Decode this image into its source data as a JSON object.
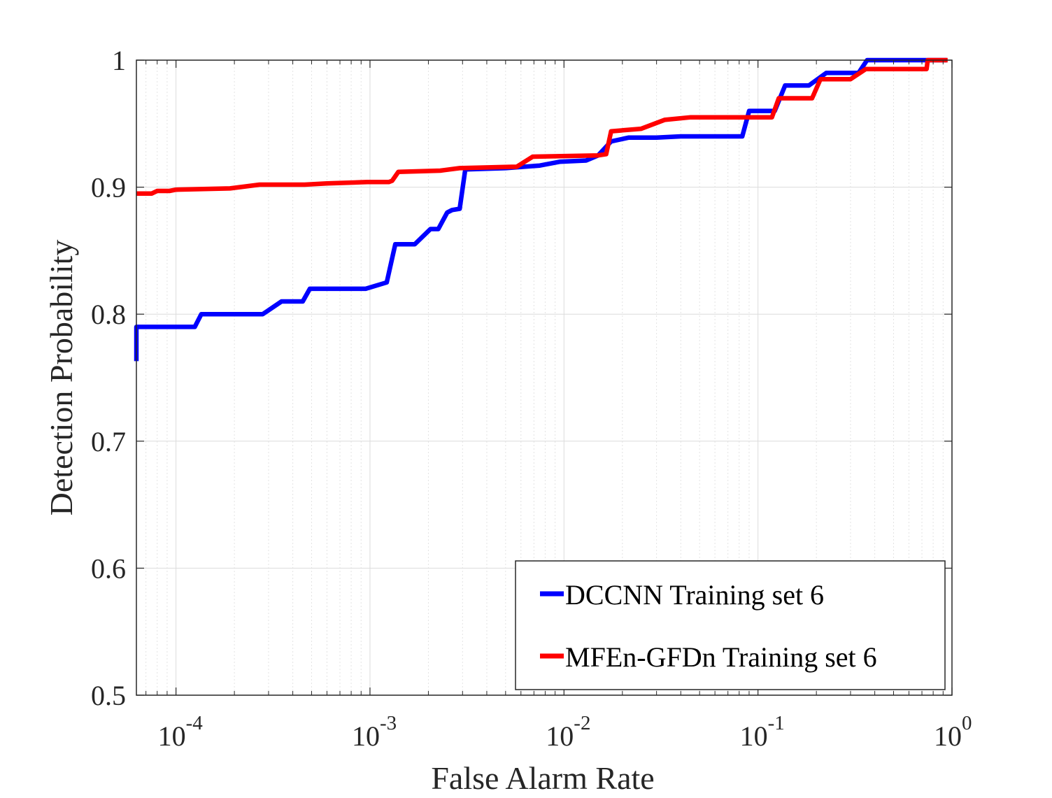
{
  "chart_data": {
    "type": "line",
    "xscale": "log",
    "xlabel": "False Alarm Rate",
    "ylabel": "Detection Probability",
    "xlim": [
      6.25e-05,
      1
    ],
    "ylim": [
      0.5,
      1
    ],
    "xtick_labels": [
      {
        "base": "10",
        "exp": "-4"
      },
      {
        "base": "10",
        "exp": "-3"
      },
      {
        "base": "10",
        "exp": "-2"
      },
      {
        "base": "10",
        "exp": "-1"
      },
      {
        "base": "10",
        "exp": "0"
      }
    ],
    "xtick_values": [
      0.0001,
      0.001,
      0.01,
      0.1,
      1
    ],
    "ytick_values": [
      0.5,
      0.6,
      0.7,
      0.8,
      0.9,
      1
    ],
    "ytick_labels": [
      "0.5",
      "0.6",
      "0.7",
      "0.8",
      "0.9",
      "1"
    ],
    "grid": true,
    "legend_position": "bottom-right",
    "series": [
      {
        "name": "DCCNN Training set 6",
        "color": "#0000ff",
        "points": [
          [
            6.25e-05,
            0.763
          ],
          [
            6.25e-05,
            0.79
          ],
          [
            0.000125,
            0.79
          ],
          [
            0.000135,
            0.8
          ],
          [
            0.00028,
            0.8
          ],
          [
            0.00035,
            0.81
          ],
          [
            0.00045,
            0.81
          ],
          [
            0.00049,
            0.82
          ],
          [
            0.00095,
            0.82
          ],
          [
            0.00122,
            0.825
          ],
          [
            0.00135,
            0.855
          ],
          [
            0.0017,
            0.855
          ],
          [
            0.00205,
            0.867
          ],
          [
            0.00225,
            0.867
          ],
          [
            0.0025,
            0.88
          ],
          [
            0.00265,
            0.882
          ],
          [
            0.0029,
            0.883
          ],
          [
            0.0031,
            0.914
          ],
          [
            0.005,
            0.915
          ],
          [
            0.0075,
            0.917
          ],
          [
            0.0095,
            0.92
          ],
          [
            0.013,
            0.921
          ],
          [
            0.015,
            0.925
          ],
          [
            0.0175,
            0.936
          ],
          [
            0.0215,
            0.939
          ],
          [
            0.03,
            0.939
          ],
          [
            0.04,
            0.94
          ],
          [
            0.083,
            0.94
          ],
          [
            0.09,
            0.96
          ],
          [
            0.122,
            0.96
          ],
          [
            0.138,
            0.98
          ],
          [
            0.183,
            0.98
          ],
          [
            0.225,
            0.99
          ],
          [
            0.33,
            0.99
          ],
          [
            0.365,
            1.0
          ],
          [
            0.94,
            1.0
          ]
        ]
      },
      {
        "name": "MFEn-GFDn Training set 6",
        "color": "#ff0000",
        "points": [
          [
            6.25e-05,
            0.895
          ],
          [
            7.5e-05,
            0.895
          ],
          [
            8e-05,
            0.897
          ],
          [
            9.25e-05,
            0.897
          ],
          [
            0.0001,
            0.898
          ],
          [
            0.00019,
            0.899
          ],
          [
            0.00027,
            0.902
          ],
          [
            0.00046,
            0.902
          ],
          [
            0.0006,
            0.903
          ],
          [
            0.00097,
            0.904
          ],
          [
            0.00125,
            0.904
          ],
          [
            0.0013,
            0.905
          ],
          [
            0.0014,
            0.912
          ],
          [
            0.0023,
            0.913
          ],
          [
            0.0029,
            0.915
          ],
          [
            0.0054,
            0.916
          ],
          [
            0.0057,
            0.916
          ],
          [
            0.0069,
            0.924
          ],
          [
            0.015,
            0.925
          ],
          [
            0.0165,
            0.926
          ],
          [
            0.0175,
            0.944
          ],
          [
            0.025,
            0.946
          ],
          [
            0.033,
            0.953
          ],
          [
            0.045,
            0.955
          ],
          [
            0.118,
            0.955
          ],
          [
            0.128,
            0.97
          ],
          [
            0.19,
            0.97
          ],
          [
            0.21,
            0.985
          ],
          [
            0.3,
            0.985
          ],
          [
            0.36,
            0.993
          ],
          [
            0.74,
            0.993
          ],
          [
            0.75,
            1.0
          ],
          [
            0.95,
            1.0
          ]
        ]
      }
    ]
  }
}
